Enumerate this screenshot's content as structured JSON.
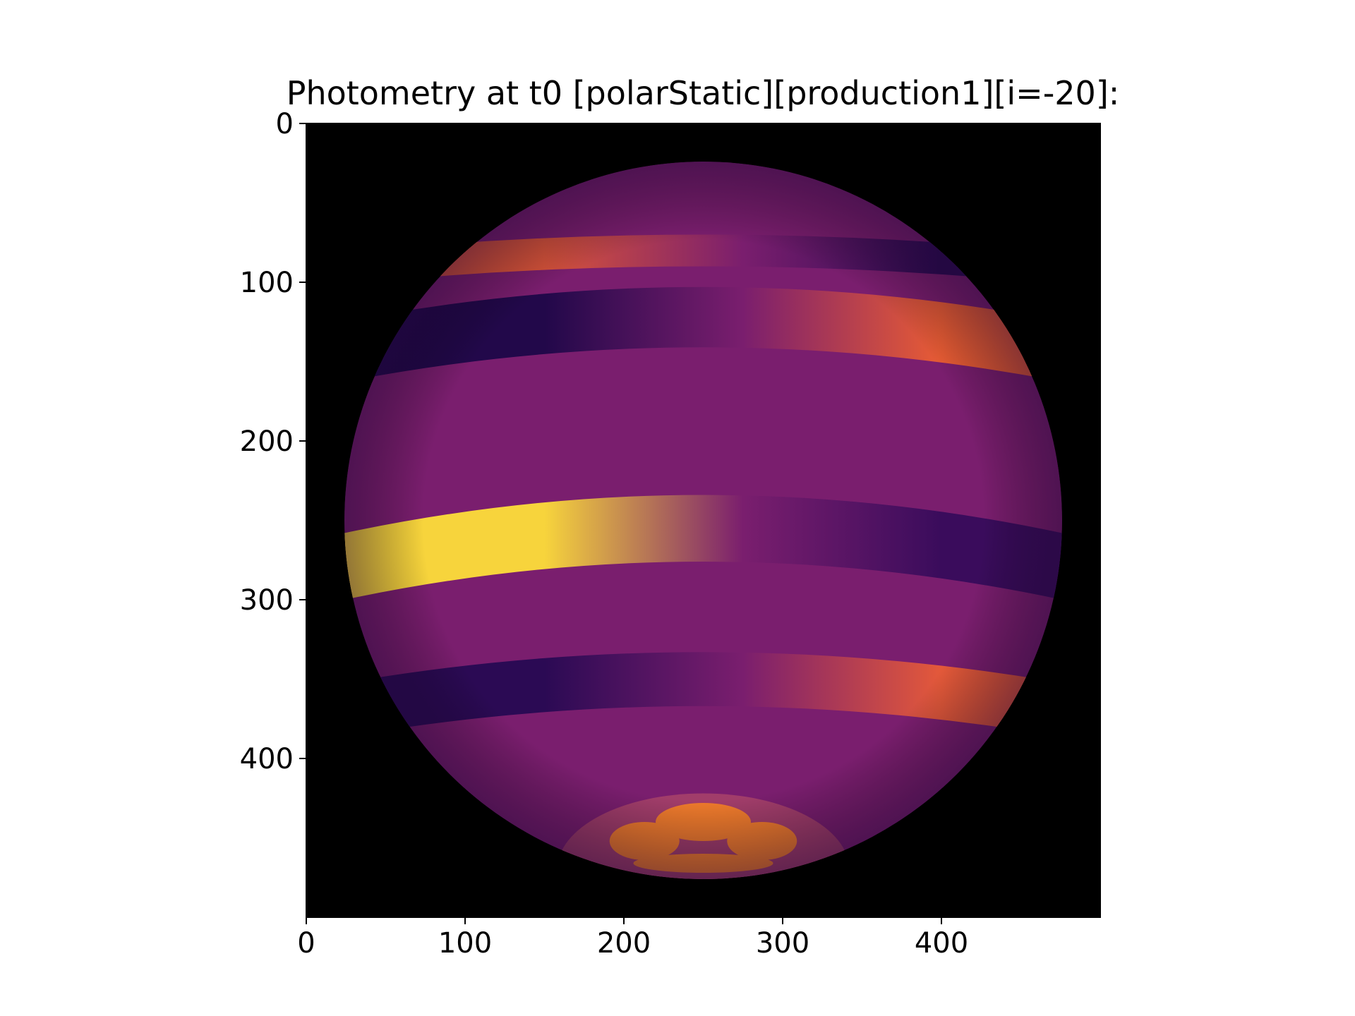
{
  "chart_data": {
    "type": "heatmap",
    "title": "Photometry at t0 [polarStatic][production1][i=-20]:",
    "xlabel": "",
    "ylabel": "",
    "xlim": [
      0,
      500
    ],
    "ylim": [
      500,
      0
    ],
    "y_inverted": true,
    "x_ticks": [
      0,
      100,
      200,
      300,
      400
    ],
    "y_ticks": [
      0,
      100,
      200,
      300,
      400
    ],
    "x_tick_labels": [
      "0",
      "100",
      "200",
      "300",
      "400"
    ],
    "y_tick_labels": [
      "0",
      "100",
      "200",
      "300",
      "400"
    ],
    "colormap": "inferno",
    "background_color": "#000000",
    "grid": false,
    "legend": "none",
    "image_content": {
      "description_source": "rendered star photometry image",
      "disk": {
        "center": [
          250,
          250
        ],
        "radius": 226
      },
      "base_color": "#7a1e6e",
      "limb_color": "#4d126b",
      "bands": [
        {
          "y_center": 80,
          "half_height": 10,
          "bright_color": "#d9543a",
          "dark_color": "#2c0a52"
        },
        {
          "y_center": 122,
          "half_height": 19,
          "bright_color": "#e85c34",
          "dark_color": "#22084a"
        },
        {
          "y_center": 255,
          "half_height": 21,
          "bright_color": "#f7d43c",
          "dark_color": "#3a0c5c"
        },
        {
          "y_center": 350,
          "half_height": 17,
          "bright_color": "#e4593a",
          "dark_color": "#2b0a54"
        }
      ],
      "polar_cap": {
        "center": [
          250,
          470
        ],
        "rx": 92,
        "ry": 48,
        "color": "#a13d6a"
      },
      "spots": [
        {
          "center": [
            250,
            440
          ],
          "rx": 30,
          "ry": 12,
          "color": "#ee7a2c"
        },
        {
          "center": [
            213,
            452
          ],
          "rx": 22,
          "ry": 12,
          "color": "#ee7a2c"
        },
        {
          "center": [
            287,
            452
          ],
          "rx": 22,
          "ry": 12,
          "color": "#ee7a2c"
        },
        {
          "center": [
            250,
            466
          ],
          "rx": 44,
          "ry": 6,
          "color": "#ee7a2c"
        }
      ]
    }
  }
}
